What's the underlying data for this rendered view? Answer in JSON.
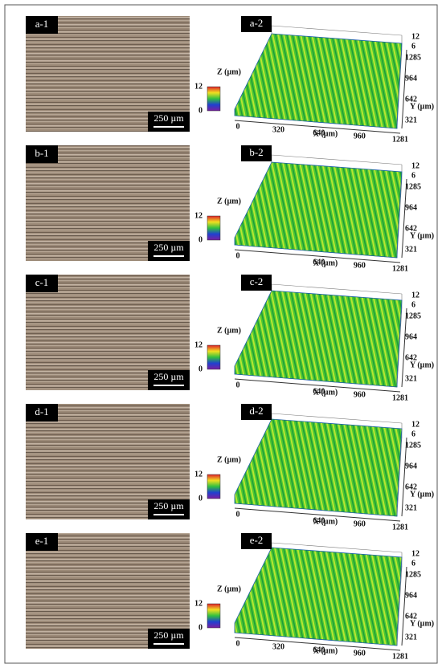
{
  "panels": [
    {
      "micrograph_label": "a-1",
      "scale_bar": "250 µm",
      "surface_label": "a-2",
      "z_axis_label": "Z (µm)",
      "colorbar_ticks": [
        "12",
        "0"
      ],
      "z_ticks": [
        "12",
        "6"
      ],
      "y_ticks": [
        "1285",
        "964",
        "642",
        "321"
      ],
      "y_axis_label": "Y (µm)",
      "x_ticks": [
        "0",
        "320",
        "640",
        "960",
        "1281"
      ],
      "x_axis_label": "X (µm)"
    },
    {
      "micrograph_label": "b-1",
      "scale_bar": "250 µm",
      "surface_label": "b-2",
      "z_axis_label": "Z (µm)",
      "colorbar_ticks": [
        "12",
        "0"
      ],
      "z_ticks": [
        "12",
        "6"
      ],
      "y_ticks": [
        "1285",
        "964",
        "642",
        "321"
      ],
      "y_axis_label": "Y (µm)",
      "x_ticks": [
        "0",
        "640",
        "960",
        "1281"
      ],
      "x_axis_label": "X (µm)"
    },
    {
      "micrograph_label": "c-1",
      "scale_bar": "250 µm",
      "surface_label": "c-2",
      "z_axis_label": "Z (µm)",
      "colorbar_ticks": [
        "12",
        "0"
      ],
      "z_ticks": [
        "12",
        "6"
      ],
      "y_ticks": [
        "1285",
        "964",
        "642",
        "321"
      ],
      "y_axis_label": "Y (µm)",
      "x_ticks": [
        "0",
        "640",
        "960",
        "1281"
      ],
      "x_axis_label": "X (µm)"
    },
    {
      "micrograph_label": "d-1",
      "scale_bar": "250 µm",
      "surface_label": "d-2",
      "z_axis_label": "Z (µm)",
      "colorbar_ticks": [
        "12",
        "0"
      ],
      "z_ticks": [
        "12",
        "6"
      ],
      "y_ticks": [
        "1285",
        "964",
        "642",
        "321"
      ],
      "y_axis_label": "Y (µm)",
      "x_ticks": [
        "0",
        "640",
        "960",
        "1281"
      ],
      "x_axis_label": "X (µm)"
    },
    {
      "micrograph_label": "e-1",
      "scale_bar": "250 µm",
      "surface_label": "e-2",
      "z_axis_label": "Z (µm)",
      "colorbar_ticks": [
        "12",
        "0"
      ],
      "z_ticks": [
        "12",
        "6"
      ],
      "y_ticks": [
        "1285",
        "964",
        "642",
        "321"
      ],
      "y_axis_label": "Y (µm)",
      "x_ticks": [
        "0",
        "320",
        "640",
        "960",
        "1281"
      ],
      "x_axis_label": "X (µm)"
    }
  ]
}
